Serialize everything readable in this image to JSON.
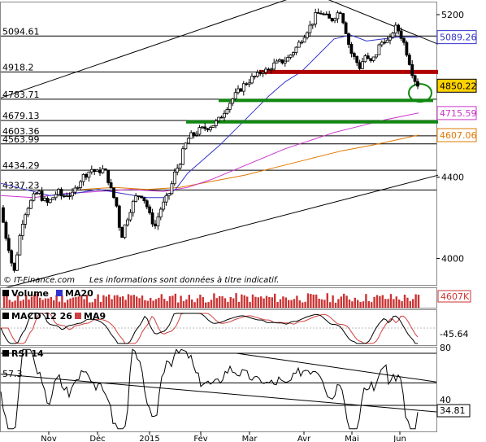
{
  "source_label": "© IT-Finance.com",
  "disclaimer": "Les informations sont données à titre indicatif.",
  "colors": {
    "candle_up": "#ffffff",
    "candle_down": "#000000",
    "ma20": "#3333cc",
    "ma50": "#cc33cc",
    "ma100": "#e07800",
    "resistance_red": "#b00000",
    "support_green": "#118811",
    "macd": "#000000",
    "macd_signal": "#d04040",
    "volume": "#cc3333"
  },
  "chart_data": [
    {
      "type": "candlestick",
      "title": "",
      "xlabel": "",
      "ylabel": "",
      "x_months": [
        "Nov",
        "Déc",
        "2015",
        "Fév",
        "Mar",
        "Avr",
        "Mai",
        "Jun"
      ],
      "y_axis_ticks": [
        4000,
        4400,
        5200
      ],
      "ylim": [
        3870,
        5260
      ],
      "levels": [
        {
          "label": "5094.61",
          "value": 5094.61
        },
        {
          "label": "4918.2",
          "value": 4918.2
        },
        {
          "label": "4783.71",
          "value": 4783.71
        },
        {
          "label": "4679.13",
          "value": 4679.13
        },
        {
          "label": "4603.36",
          "value": 4603.36
        },
        {
          "label": "4563.99",
          "value": 4563.99
        },
        {
          "label": "4434.29",
          "value": 4434.29
        },
        {
          "label": "4337.23",
          "value": 4337.23
        }
      ],
      "last_values": [
        {
          "name": "MA20",
          "label": "5089.26",
          "value": 5089.26,
          "color": "#3333cc"
        },
        {
          "name": "Last",
          "label": "4850.22",
          "value": 4850.22,
          "color": "#000000",
          "fill": "#ffd200"
        },
        {
          "name": "MA50",
          "label": "4715.59",
          "value": 4715.59,
          "color": "#cc33cc"
        },
        {
          "name": "MA100",
          "label": "4607.06",
          "value": 4607.06,
          "color": "#e07800"
        }
      ],
      "close_path": [
        [
          0,
          4250
        ],
        [
          5,
          4130
        ],
        [
          10,
          4050
        ],
        [
          16,
          3920
        ],
        [
          22,
          4080
        ],
        [
          28,
          4210
        ],
        [
          34,
          4260
        ],
        [
          40,
          4300
        ],
        [
          46,
          4330
        ],
        [
          52,
          4290
        ],
        [
          58,
          4270
        ],
        [
          64,
          4300
        ],
        [
          70,
          4330
        ],
        [
          76,
          4300
        ],
        [
          82,
          4320
        ],
        [
          88,
          4310
        ],
        [
          94,
          4360
        ],
        [
          100,
          4400
        ],
        [
          106,
          4420
        ],
        [
          112,
          4440
        ],
        [
          118,
          4420
        ],
        [
          124,
          4440
        ],
        [
          130,
          4420
        ],
        [
          136,
          4330
        ],
        [
          142,
          4270
        ],
        [
          148,
          4100
        ],
        [
          154,
          4180
        ],
        [
          160,
          4250
        ],
        [
          166,
          4300
        ],
        [
          172,
          4320
        ],
        [
          178,
          4280
        ],
        [
          184,
          4200
        ],
        [
          190,
          4160
        ],
        [
          196,
          4240
        ],
        [
          202,
          4280
        ],
        [
          208,
          4330
        ],
        [
          214,
          4420
        ],
        [
          220,
          4470
        ],
        [
          226,
          4550
        ],
        [
          232,
          4600
        ],
        [
          238,
          4610
        ],
        [
          244,
          4630
        ],
        [
          250,
          4640
        ],
        [
          256,
          4650
        ],
        [
          262,
          4660
        ],
        [
          268,
          4680
        ],
        [
          274,
          4720
        ],
        [
          280,
          4760
        ],
        [
          286,
          4790
        ],
        [
          292,
          4820
        ],
        [
          298,
          4850
        ],
        [
          304,
          4870
        ],
        [
          310,
          4890
        ],
        [
          316,
          4900
        ],
        [
          322,
          4930
        ],
        [
          328,
          4920
        ],
        [
          334,
          4950
        ],
        [
          340,
          4960
        ],
        [
          346,
          4970
        ],
        [
          352,
          4980
        ],
        [
          358,
          5010
        ],
        [
          364,
          5040
        ],
        [
          370,
          5080
        ],
        [
          376,
          5120
        ],
        [
          382,
          5150
        ],
        [
          388,
          5200
        ],
        [
          394,
          5210
        ],
        [
          400,
          5190
        ],
        [
          406,
          5170
        ],
        [
          412,
          5200
        ],
        [
          418,
          5220
        ],
        [
          424,
          5130
        ],
        [
          430,
          5020
        ],
        [
          436,
          4980
        ],
        [
          442,
          4940
        ],
        [
          448,
          5000
        ],
        [
          454,
          4960
        ],
        [
          460,
          4990
        ],
        [
          466,
          5050
        ],
        [
          472,
          5080
        ],
        [
          478,
          5060
        ],
        [
          484,
          5140
        ],
        [
          490,
          5120
        ],
        [
          496,
          5060
        ],
        [
          502,
          4980
        ],
        [
          508,
          4890
        ],
        [
          514,
          4850
        ]
      ],
      "ma20_path": [
        [
          0,
          4370
        ],
        [
          30,
          4340
        ],
        [
          60,
          4310
        ],
        [
          90,
          4320
        ],
        [
          120,
          4340
        ],
        [
          150,
          4320
        ],
        [
          180,
          4300
        ],
        [
          200,
          4300
        ],
        [
          215,
          4340
        ],
        [
          230,
          4420
        ],
        [
          250,
          4490
        ],
        [
          270,
          4560
        ],
        [
          290,
          4640
        ],
        [
          310,
          4720
        ],
        [
          330,
          4800
        ],
        [
          350,
          4870
        ],
        [
          370,
          4920
        ],
        [
          390,
          5000
        ],
        [
          410,
          5080
        ],
        [
          430,
          5100
        ],
        [
          450,
          5070
        ],
        [
          470,
          5080
        ],
        [
          490,
          5090
        ],
        [
          514,
          5089
        ]
      ],
      "ma50_path": [
        [
          0,
          4310
        ],
        [
          40,
          4300
        ],
        [
          80,
          4320
        ],
        [
          120,
          4330
        ],
        [
          160,
          4340
        ],
        [
          200,
          4330
        ],
        [
          230,
          4350
        ],
        [
          260,
          4390
        ],
        [
          290,
          4440
        ],
        [
          320,
          4490
        ],
        [
          350,
          4540
        ],
        [
          380,
          4580
        ],
        [
          410,
          4620
        ],
        [
          440,
          4650
        ],
        [
          470,
          4680
        ],
        [
          500,
          4705
        ],
        [
          514,
          4716
        ]
      ],
      "ma100_path": [
        [
          100,
          4340
        ],
        [
          140,
          4350
        ],
        [
          180,
          4340
        ],
        [
          220,
          4350
        ],
        [
          260,
          4380
        ],
        [
          300,
          4410
        ],
        [
          340,
          4450
        ],
        [
          380,
          4490
        ],
        [
          420,
          4530
        ],
        [
          460,
          4560
        ],
        [
          500,
          4595
        ],
        [
          514,
          4607
        ]
      ],
      "trendlines": [
        {
          "color": "#000000",
          "from": [
            0,
            4790
          ],
          "to": [
            538,
            5530
          ]
        },
        {
          "color": "#000000",
          "from": [
            325,
            5400
          ],
          "to": [
            538,
            5055
          ]
        },
        {
          "color": "#000000",
          "from": [
            0,
            3850
          ],
          "to": [
            538,
            4410
          ]
        }
      ],
      "resistance_band": {
        "value": 4918,
        "from": 318,
        "to": 538,
        "color": "#b00000"
      },
      "support_bands": [
        {
          "value": 4778,
          "from": 268,
          "to": 532,
          "color": "#118811"
        },
        {
          "value": 4672,
          "from": 228,
          "to": 538,
          "color": "#118811"
        }
      ],
      "highlight_circle": {
        "center": [
          516,
          4815
        ],
        "rx": 14,
        "ry": 11,
        "color": "#118811"
      }
    },
    {
      "type": "bar",
      "title": "",
      "legend": [
        {
          "name": "Volume",
          "color": "#cc3333"
        },
        {
          "name": "MA20",
          "color": "#3333cc"
        }
      ],
      "last_value_label": "4607K",
      "note": "daily volume bars"
    },
    {
      "type": "line",
      "title": "",
      "legend": [
        {
          "name": "MACD 12 26",
          "color": "#000000"
        },
        {
          "name": "MA9",
          "color": "#d04040"
        }
      ],
      "last_value_label": "-45.64"
    },
    {
      "type": "line",
      "title": "",
      "legend": [
        {
          "name": "RSI 14",
          "color": "#000000"
        }
      ],
      "y_axis_ticks": [
        {
          "label": "80",
          "value": 80
        },
        {
          "label": "40",
          "value": 40
        }
      ],
      "levels": [
        {
          "label": "57.3",
          "value": 57.3
        }
      ],
      "last_value_label": "34.81",
      "last_value": 34.81,
      "ylim": [
        20,
        85
      ]
    }
  ]
}
